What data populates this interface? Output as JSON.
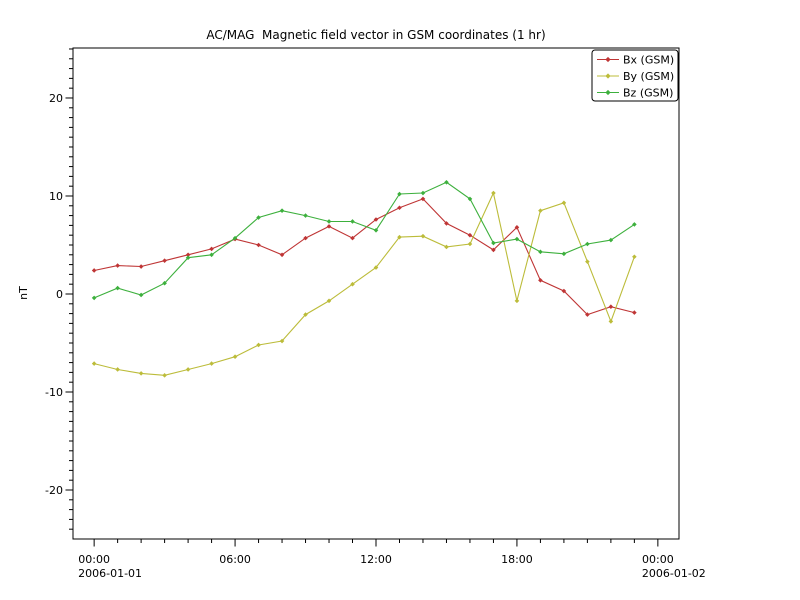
{
  "window": {
    "background": "#ffffff"
  },
  "chart_data": {
    "type": "line",
    "title": "AC/MAG  Magnetic field vector in GSM coordinates (1 hr)",
    "xlabel": "",
    "ylabel": "nT",
    "x_unit": "hours from 2006-01-01 00:00 UTC",
    "x": [
      0,
      1,
      2,
      3,
      4,
      5,
      6,
      7,
      8,
      9,
      10,
      11,
      12,
      13,
      14,
      15,
      16,
      17,
      18,
      19,
      20,
      21,
      22,
      23
    ],
    "series": [
      {
        "name": "Bx (GSM)",
        "color": "#bf3535",
        "values": [
          2.4,
          2.9,
          2.8,
          3.4,
          4.0,
          4.6,
          5.6,
          5.0,
          4.0,
          5.7,
          6.9,
          5.7,
          7.6,
          8.8,
          9.7,
          7.2,
          6.0,
          4.5,
          6.8,
          1.4,
          0.3,
          -2.1,
          -1.3,
          -1.9
        ]
      },
      {
        "name": "By (GSM)",
        "color": "#bcbc3a",
        "values": [
          -7.1,
          -7.7,
          -8.1,
          -8.3,
          -7.7,
          -7.1,
          -6.4,
          -5.2,
          -4.8,
          -2.1,
          -0.7,
          1.0,
          2.7,
          5.8,
          5.9,
          4.8,
          5.1,
          10.3,
          -0.7,
          8.5,
          9.3,
          3.3,
          -2.8,
          3.8
        ]
      },
      {
        "name": "Bz (GSM)",
        "color": "#3db03d",
        "values": [
          -0.4,
          0.6,
          -0.1,
          1.1,
          3.7,
          4.0,
          5.7,
          7.8,
          8.5,
          8.0,
          7.4,
          7.4,
          6.5,
          10.2,
          10.3,
          11.4,
          9.7,
          5.2,
          5.6,
          4.3,
          4.1,
          5.1,
          5.5,
          7.1
        ]
      }
    ],
    "xlim": [
      -0.9,
      24.9
    ],
    "ylim": [
      -25.0,
      25.1
    ],
    "y_major_ticks": [
      -20,
      -10,
      0,
      10,
      20
    ],
    "y_tick_labels": [
      "-20",
      "-10",
      "0",
      "10",
      "20"
    ],
    "y_minor_step": 1,
    "x_major_ticks": [
      0,
      6,
      12,
      18,
      24
    ],
    "x_tick_labels": [
      "00:00",
      "06:00",
      "12:00",
      "18:00",
      "00:00"
    ],
    "x_minor_step": 1,
    "x_date_labels": [
      {
        "tick": 0,
        "label": "2006-01-01"
      },
      {
        "tick": 24,
        "label": "2006-01-02"
      }
    ],
    "legend": {
      "position": "top-right",
      "entries": [
        "Bx (GSM)",
        "By (GSM)",
        "Bz (GSM)"
      ]
    },
    "grid": false,
    "marker": "diamond"
  }
}
